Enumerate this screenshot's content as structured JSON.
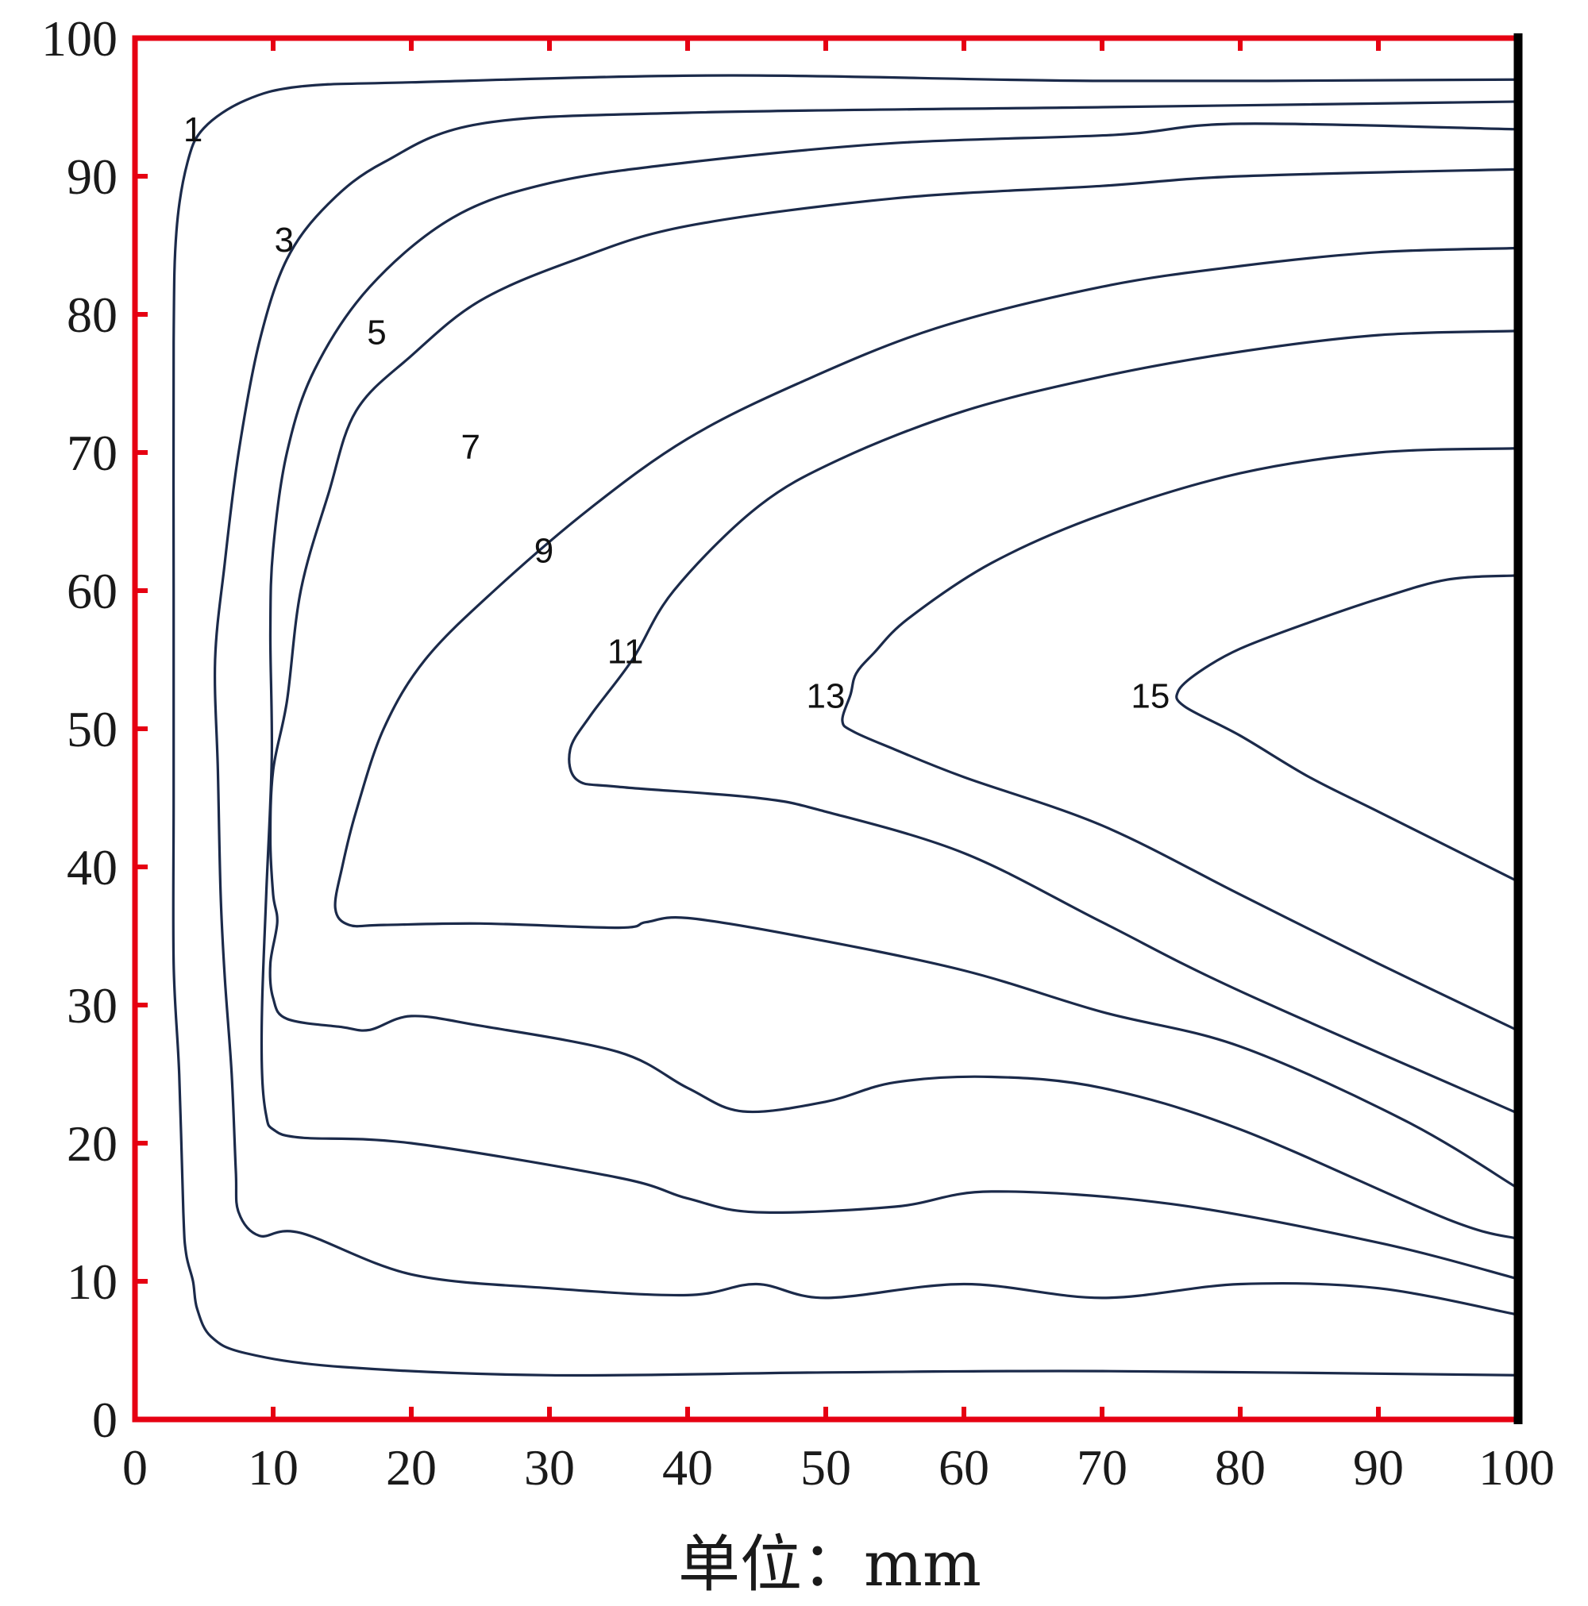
{
  "chart_data": {
    "type": "line",
    "title": "",
    "xlabel": "单位：mm",
    "ylabel": "",
    "xlim": [
      0,
      100
    ],
    "ylim": [
      0,
      100
    ],
    "xticks": [
      "0",
      "10",
      "20",
      "30",
      "40",
      "50",
      "60",
      "70",
      "80",
      "90",
      "100"
    ],
    "yticks": [
      "0",
      "10",
      "20",
      "30",
      "40",
      "50",
      "60",
      "70",
      "80",
      "90",
      "100"
    ],
    "grid": false,
    "legend": "none",
    "colors": {
      "frame": "#e60012",
      "right_edge": "#000000",
      "contour": "#1b2a4a"
    },
    "series": [
      {
        "label": "1",
        "label_pos": [
          4.2,
          93.2
        ],
        "points": [
          [
            100,
            97
          ],
          [
            70,
            96.9
          ],
          [
            43,
            97.3
          ],
          [
            20,
            96.8
          ],
          [
            12,
            96.5
          ],
          [
            8,
            95.5
          ],
          [
            5,
            93.5
          ],
          [
            3.8,
            91
          ],
          [
            3,
            86
          ],
          [
            2.8,
            78
          ],
          [
            2.8,
            60
          ],
          [
            2.8,
            45
          ],
          [
            2.8,
            33
          ],
          [
            3.2,
            25
          ],
          [
            3.5,
            15
          ],
          [
            3.7,
            12
          ],
          [
            4.2,
            10
          ],
          [
            4.5,
            8
          ],
          [
            5.5,
            6
          ],
          [
            8,
            4.8
          ],
          [
            15,
            3.8
          ],
          [
            30,
            3.2
          ],
          [
            50,
            3.4
          ],
          [
            70,
            3.5
          ],
          [
            100,
            3.2
          ]
        ]
      },
      {
        "label": "3",
        "label_pos": [
          10.8,
          85.2
        ],
        "points": [
          [
            100,
            95.4
          ],
          [
            70,
            95
          ],
          [
            40,
            94.6
          ],
          [
            25,
            93.8
          ],
          [
            18,
            91
          ],
          [
            14,
            88
          ],
          [
            11,
            84
          ],
          [
            9,
            78
          ],
          [
            7.5,
            70
          ],
          [
            6.5,
            62
          ],
          [
            5.8,
            55
          ],
          [
            6,
            47
          ],
          [
            6.2,
            38
          ],
          [
            6.5,
            32
          ],
          [
            7,
            25
          ],
          [
            7.3,
            18
          ],
          [
            7.5,
            15
          ],
          [
            9,
            13.3
          ],
          [
            12,
            13.5
          ],
          [
            20,
            10.5
          ],
          [
            30,
            9.5
          ],
          [
            40,
            9
          ],
          [
            45,
            9.8
          ],
          [
            50,
            8.8
          ],
          [
            60,
            9.8
          ],
          [
            70,
            8.8
          ],
          [
            80,
            9.8
          ],
          [
            90,
            9.5
          ],
          [
            100,
            7.6
          ]
        ]
      },
      {
        "label": "5",
        "label_pos": [
          17.5,
          78.5
        ],
        "points": [
          [
            100,
            93.4
          ],
          [
            80,
            93.8
          ],
          [
            71,
            93
          ],
          [
            55,
            92.4
          ],
          [
            40,
            91
          ],
          [
            30,
            89.5
          ],
          [
            23,
            87
          ],
          [
            17,
            82
          ],
          [
            13,
            76
          ],
          [
            11,
            70
          ],
          [
            10,
            63
          ],
          [
            9.8,
            57
          ],
          [
            9.9,
            48
          ],
          [
            9.5,
            38
          ],
          [
            9.2,
            30
          ],
          [
            9.2,
            25
          ],
          [
            9.5,
            22
          ],
          [
            10,
            21
          ],
          [
            12,
            20.4
          ],
          [
            20,
            20
          ],
          [
            35,
            17.5
          ],
          [
            40,
            16
          ],
          [
            45,
            15
          ],
          [
            55,
            15.4
          ],
          [
            62,
            16.5
          ],
          [
            75,
            15.6
          ],
          [
            90,
            12.8
          ],
          [
            100,
            10.2
          ]
        ]
      },
      {
        "label": "7",
        "label_pos": [
          24.3,
          70.2
        ],
        "points": [
          [
            100,
            90.5
          ],
          [
            80,
            90
          ],
          [
            70,
            89.3
          ],
          [
            55,
            88.4
          ],
          [
            40,
            86.4
          ],
          [
            32,
            84
          ],
          [
            25,
            81
          ],
          [
            20,
            77
          ],
          [
            16,
            73
          ],
          [
            14,
            67
          ],
          [
            12,
            60
          ],
          [
            11,
            52
          ],
          [
            10,
            47
          ],
          [
            9.8,
            42
          ],
          [
            10,
            38
          ],
          [
            10.3,
            36
          ],
          [
            9.8,
            33
          ],
          [
            10,
            30.5
          ],
          [
            11,
            29
          ],
          [
            15,
            28.4
          ],
          [
            17,
            28.2
          ],
          [
            20,
            29.2
          ],
          [
            25,
            28.5
          ],
          [
            35,
            26.6
          ],
          [
            40,
            24
          ],
          [
            44,
            22.3
          ],
          [
            50,
            23
          ],
          [
            55,
            24.4
          ],
          [
            62,
            24.8
          ],
          [
            70,
            24
          ],
          [
            80,
            21
          ],
          [
            95,
            14.5
          ],
          [
            100,
            13.1
          ]
        ]
      },
      {
        "label": "9",
        "label_pos": [
          29.6,
          62.7
        ],
        "points": [
          [
            100,
            84.8
          ],
          [
            90,
            84.5
          ],
          [
            80,
            83.5
          ],
          [
            70,
            82
          ],
          [
            58,
            79
          ],
          [
            48,
            75
          ],
          [
            40,
            71
          ],
          [
            33,
            66
          ],
          [
            26,
            60
          ],
          [
            21,
            55
          ],
          [
            18,
            50
          ],
          [
            16,
            44
          ],
          [
            15,
            40
          ],
          [
            14.5,
            37
          ],
          [
            15.5,
            35.8
          ],
          [
            18,
            35.8
          ],
          [
            25,
            35.9
          ],
          [
            35,
            35.6
          ],
          [
            37,
            36
          ],
          [
            40,
            36.3
          ],
          [
            48,
            35
          ],
          [
            60,
            32.5
          ],
          [
            70,
            29.5
          ],
          [
            80,
            27
          ],
          [
            92,
            21.6
          ],
          [
            100,
            16.8
          ]
        ]
      },
      {
        "label": "11",
        "label_pos": [
          35.5,
          55.4
        ],
        "points": [
          [
            100,
            78.8
          ],
          [
            90,
            78.5
          ],
          [
            80,
            77.3
          ],
          [
            70,
            75.5
          ],
          [
            60,
            73
          ],
          [
            51,
            69.5
          ],
          [
            45,
            66
          ],
          [
            39,
            60
          ],
          [
            36,
            55
          ],
          [
            33,
            51
          ],
          [
            31.5,
            48.5
          ],
          [
            32,
            46.3
          ],
          [
            35,
            45.8
          ],
          [
            45,
            45
          ],
          [
            50,
            44
          ],
          [
            60,
            41
          ],
          [
            70,
            36
          ],
          [
            80,
            31
          ],
          [
            100,
            22.2
          ]
        ]
      },
      {
        "label": "13",
        "label_pos": [
          50,
          52.2
        ],
        "points": [
          [
            100,
            70.3
          ],
          [
            90,
            70
          ],
          [
            80,
            68.5
          ],
          [
            70,
            65.5
          ],
          [
            62,
            62
          ],
          [
            56,
            58
          ],
          [
            53.5,
            55.5
          ],
          [
            52.2,
            54
          ],
          [
            51.8,
            52.5
          ],
          [
            51.2,
            50.6
          ],
          [
            52,
            49.8
          ],
          [
            55,
            48.5
          ],
          [
            60,
            46.5
          ],
          [
            70,
            43
          ],
          [
            80,
            38
          ],
          [
            90,
            33
          ],
          [
            100,
            28.2
          ]
        ]
      },
      {
        "label": "15",
        "label_pos": [
          73.5,
          52.2
        ],
        "points": [
          [
            100,
            61.1
          ],
          [
            95,
            60.8
          ],
          [
            90,
            59.4
          ],
          [
            85,
            57.7
          ],
          [
            80,
            55.8
          ],
          [
            77,
            54.1
          ],
          [
            75.5,
            52.7
          ],
          [
            76,
            51.6
          ],
          [
            80,
            49.5
          ],
          [
            85,
            46.5
          ],
          [
            90,
            44
          ],
          [
            95,
            41.5
          ],
          [
            100,
            39
          ]
        ]
      }
    ],
    "annotations": [
      "1",
      "3",
      "5",
      "7",
      "9",
      "11",
      "13",
      "15"
    ]
  }
}
